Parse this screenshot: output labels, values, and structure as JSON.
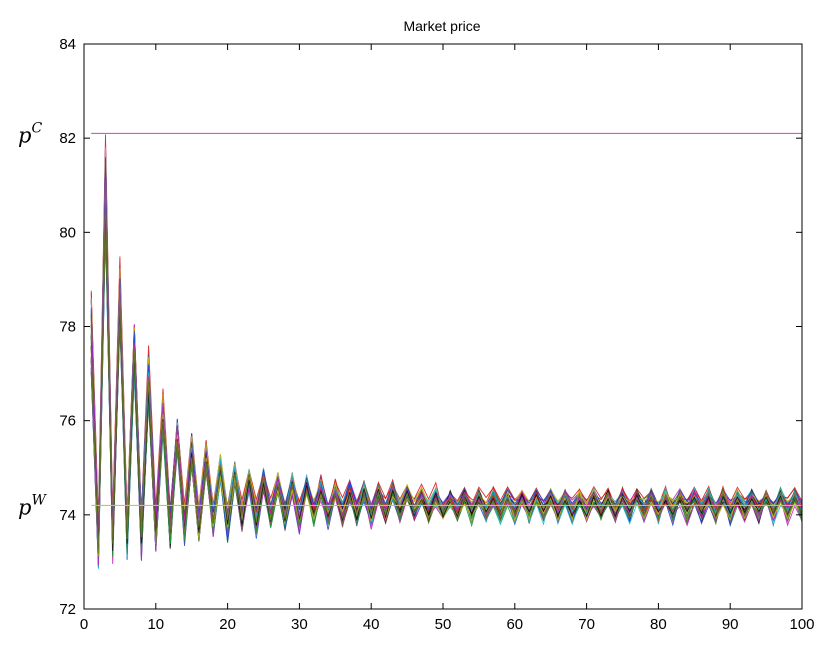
{
  "chart_data": {
    "type": "line",
    "title": "Market price",
    "xlabel": "",
    "ylabel": "",
    "xlim": [
      0,
      100
    ],
    "ylim": [
      72,
      84
    ],
    "xticks": [
      0,
      10,
      20,
      30,
      40,
      50,
      60,
      70,
      80,
      90,
      100
    ],
    "yticks": [
      72,
      74,
      76,
      78,
      80,
      82,
      84
    ],
    "grid": false,
    "legend": "none",
    "reference_lines": [
      {
        "label": "p",
        "label_sup": "C",
        "y": 82.1,
        "color": "#d94fd9"
      },
      {
        "label": "p",
        "label_sup": "W",
        "y": 74.2,
        "color": "#d6c23a"
      }
    ],
    "series_count": 40,
    "series_colors": [
      "#1f3fd1",
      "#1a9a3a",
      "#d41c1c",
      "#20b8c8",
      "#c020c0",
      "#c8b818",
      "#111111",
      "#6b7a2e"
    ],
    "x": [
      1,
      2,
      3,
      4,
      5,
      6,
      7,
      8,
      9,
      10,
      11,
      12,
      13,
      14,
      15,
      16,
      17,
      18,
      19,
      20,
      21,
      22,
      23,
      24,
      25,
      26,
      27,
      28,
      29,
      30,
      31,
      32,
      33,
      34,
      35,
      36,
      37,
      38,
      39,
      40,
      41,
      42,
      43,
      44,
      45,
      46,
      47,
      48,
      49,
      50,
      51,
      52,
      53,
      54,
      55,
      56,
      57,
      58,
      59,
      60,
      61,
      62,
      63,
      64,
      65,
      66,
      67,
      68,
      69,
      70,
      71,
      72,
      73,
      74,
      75,
      76,
      77,
      78,
      79,
      80,
      81,
      82,
      83,
      84,
      85,
      86,
      87,
      88,
      89,
      90,
      91,
      92,
      93,
      94,
      95,
      96,
      97,
      98,
      99,
      100
    ],
    "representative_series": {
      "upper_envelope": [
        79.0,
        73.9,
        82.2,
        74.0,
        79.5,
        74.1,
        78.2,
        74.1,
        77.6,
        74.2,
        76.7,
        74.2,
        76.1,
        74.2,
        75.8,
        74.2,
        75.6,
        74.3,
        75.3,
        74.3,
        75.1,
        74.3,
        75.0,
        74.3,
        75.0,
        74.3,
        74.9,
        74.3,
        74.9,
        74.3,
        74.8,
        74.3,
        74.8,
        74.3,
        74.7,
        74.3,
        74.7,
        74.3,
        74.7,
        74.3,
        74.7,
        74.3,
        74.7,
        74.3,
        74.6,
        74.3,
        74.6,
        74.3,
        74.6,
        74.3,
        74.5,
        74.3,
        74.5,
        74.3,
        74.5,
        74.3,
        74.5,
        74.3,
        74.5,
        74.3,
        74.5,
        74.3,
        74.5,
        74.3,
        74.5,
        74.3,
        74.5,
        74.3,
        74.5,
        74.3,
        74.5,
        74.3,
        74.5,
        74.3,
        74.5,
        74.3,
        74.5,
        74.3,
        74.5,
        74.3,
        74.5,
        74.3,
        74.5,
        74.3,
        74.5,
        74.3,
        74.5,
        74.3,
        74.5,
        74.3,
        74.5,
        74.3,
        74.5,
        74.3,
        74.5,
        74.3,
        74.5,
        74.3,
        74.5,
        74.3
      ],
      "lower_envelope": [
        77.0,
        72.9,
        80.0,
        73.0,
        78.0,
        73.1,
        77.0,
        73.1,
        76.3,
        73.2,
        75.8,
        73.3,
        75.4,
        73.4,
        75.0,
        73.4,
        74.9,
        73.5,
        74.8,
        73.5,
        74.7,
        73.6,
        74.6,
        73.6,
        74.6,
        73.7,
        74.5,
        73.7,
        74.5,
        73.7,
        74.5,
        73.8,
        74.4,
        73.8,
        74.4,
        73.8,
        74.4,
        73.8,
        74.4,
        73.8,
        74.4,
        73.9,
        74.4,
        73.9,
        74.4,
        73.9,
        74.3,
        73.9,
        74.3,
        73.9,
        74.3,
        73.9,
        74.3,
        73.9,
        74.3,
        73.9,
        74.3,
        73.9,
        74.3,
        73.9,
        74.3,
        73.9,
        74.3,
        73.9,
        74.3,
        73.9,
        74.3,
        73.9,
        74.3,
        73.9,
        74.3,
        73.9,
        74.3,
        73.9,
        74.3,
        73.9,
        74.3,
        73.9,
        74.3,
        73.9,
        74.3,
        73.9,
        74.3,
        73.9,
        74.3,
        73.9,
        74.3,
        73.9,
        74.3,
        73.9,
        74.3,
        73.9,
        74.3,
        73.9,
        74.3,
        73.9,
        74.3,
        73.9,
        74.3,
        73.9
      ]
    }
  }
}
